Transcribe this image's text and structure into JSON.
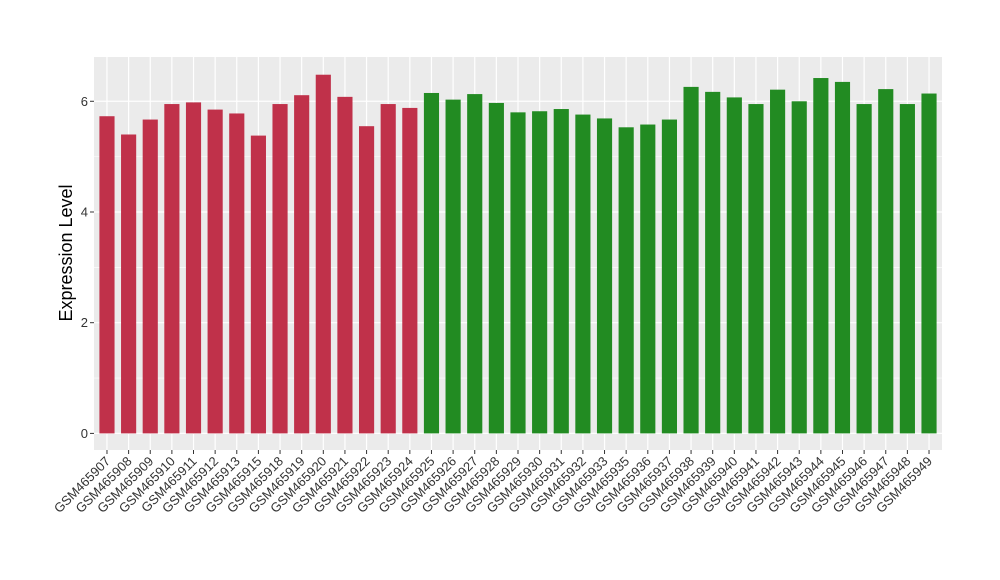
{
  "chart_data": {
    "type": "bar",
    "ylabel": "Expression Level",
    "xlabel": "",
    "ylim": [
      -0.3,
      6.8
    ],
    "yticks": [
      0,
      2,
      4,
      6
    ],
    "grid": true,
    "legend": "none",
    "categories": [
      "GSM465907",
      "GSM465908",
      "GSM465909",
      "GSM465910",
      "GSM465911",
      "GSM465912",
      "GSM465913",
      "GSM465915",
      "GSM465918",
      "GSM465919",
      "GSM465920",
      "GSM465921",
      "GSM465922",
      "GSM465923",
      "GSM465924",
      "GSM465925",
      "GSM465926",
      "GSM465927",
      "GSM465928",
      "GSM465929",
      "GSM465930",
      "GSM465931",
      "GSM465932",
      "GSM465933",
      "GSM465935",
      "GSM465936",
      "GSM465937",
      "GSM465938",
      "GSM465939",
      "GSM465940",
      "GSM465941",
      "GSM465942",
      "GSM465943",
      "GSM465944",
      "GSM465945",
      "GSM465946",
      "GSM465947",
      "GSM465948",
      "GSM465949"
    ],
    "values": [
      5.73,
      5.4,
      5.67,
      5.95,
      5.98,
      5.85,
      5.78,
      5.38,
      5.95,
      6.11,
      6.48,
      6.08,
      5.55,
      5.95,
      5.88,
      6.15,
      6.03,
      6.13,
      5.97,
      5.8,
      5.82,
      5.86,
      5.76,
      5.69,
      5.53,
      5.58,
      5.67,
      6.26,
      6.17,
      6.07,
      5.95,
      6.21,
      6.0,
      6.42,
      6.35,
      5.95,
      6.22,
      5.95,
      6.14
    ],
    "bar_colors": [
      "#c0314a",
      "#c0314a",
      "#c0314a",
      "#c0314a",
      "#c0314a",
      "#c0314a",
      "#c0314a",
      "#c0314a",
      "#c0314a",
      "#c0314a",
      "#c0314a",
      "#c0314a",
      "#c0314a",
      "#c0314a",
      "#c0314a",
      "#228b22",
      "#228b22",
      "#228b22",
      "#228b22",
      "#228b22",
      "#228b22",
      "#228b22",
      "#228b22",
      "#228b22",
      "#228b22",
      "#228b22",
      "#228b22",
      "#228b22",
      "#228b22",
      "#228b22",
      "#228b22",
      "#228b22",
      "#228b22",
      "#228b22",
      "#228b22",
      "#228b22",
      "#228b22",
      "#228b22",
      "#228b22"
    ],
    "panel_background": "#ebebeb",
    "grid_color": "#ffffff"
  }
}
